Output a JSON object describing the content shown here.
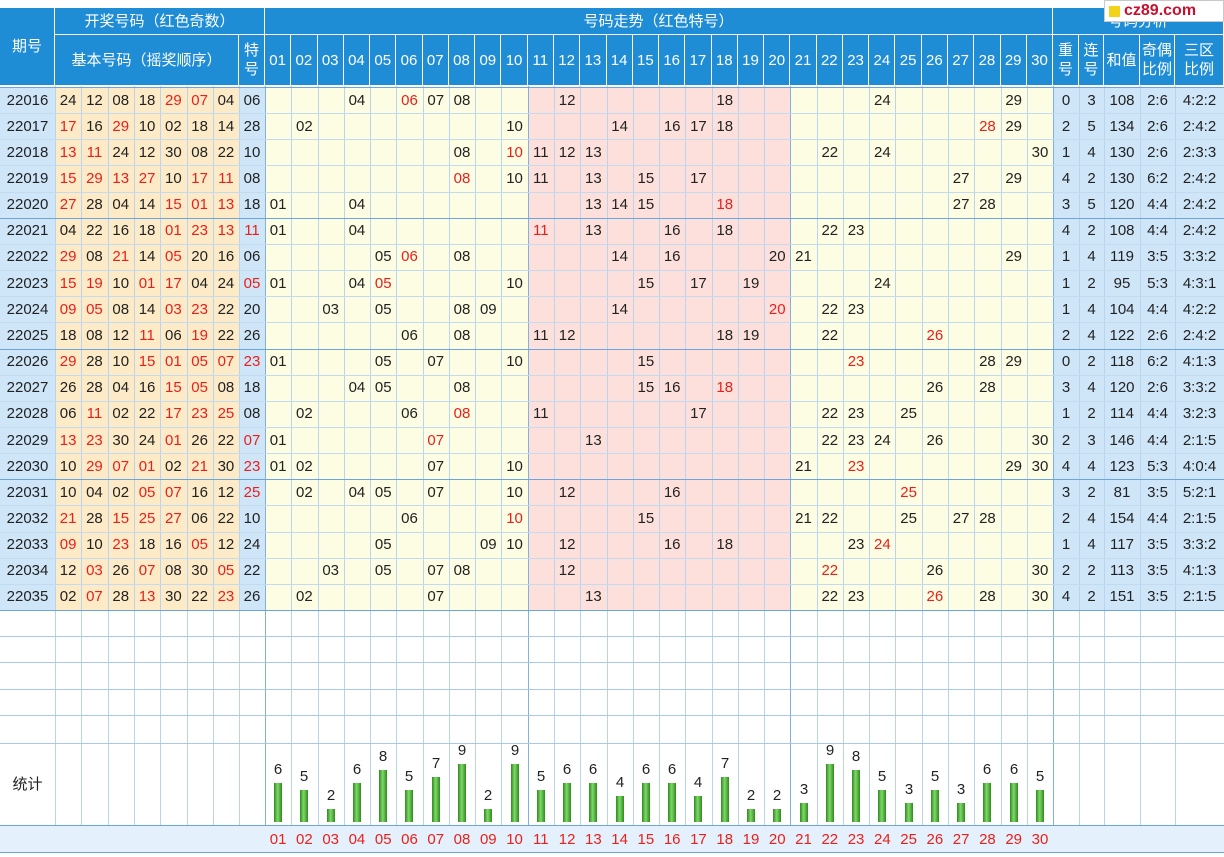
{
  "header": {
    "period_label": "期号",
    "draw_group_label": "开奖号码（红色奇数）",
    "basic_label": "基本号码（摇奖顺序）",
    "special_label": "特号",
    "trend_label": "号码走势（红色特号）",
    "analysis_label": "号码分析",
    "repeat_label": "重号",
    "consec_label": "连号",
    "sum_label": "和值",
    "oddeven_label": "奇偶比例",
    "zone_label": "三区比例",
    "stats_label": "统计"
  },
  "trend_numbers": [
    "01",
    "02",
    "03",
    "04",
    "05",
    "06",
    "07",
    "08",
    "09",
    "10",
    "11",
    "12",
    "13",
    "14",
    "15",
    "16",
    "17",
    "18",
    "19",
    "20",
    "21",
    "22",
    "23",
    "24",
    "25",
    "26",
    "27",
    "28",
    "29",
    "30"
  ],
  "rows": [
    {
      "period": "22016",
      "basic": [
        "24",
        "12",
        "08",
        "18",
        "29",
        "07",
        "04"
      ],
      "special": "06",
      "trend": [
        "04",
        "06",
        "07",
        "08",
        "12",
        "18",
        "24",
        "29"
      ],
      "repeat": "0",
      "consec": "3",
      "sum": "108",
      "oddeven": "2:6",
      "zone": "4:2:2"
    },
    {
      "period": "22017",
      "basic": [
        "17",
        "16",
        "29",
        "10",
        "02",
        "18",
        "14"
      ],
      "special": "28",
      "trend": [
        "02",
        "10",
        "14",
        "16",
        "17",
        "18",
        "28",
        "29"
      ],
      "repeat": "2",
      "consec": "5",
      "sum": "134",
      "oddeven": "2:6",
      "zone": "2:4:2"
    },
    {
      "period": "22018",
      "basic": [
        "13",
        "11",
        "24",
        "12",
        "30",
        "08",
        "22"
      ],
      "special": "10",
      "trend": [
        "08",
        "10",
        "11",
        "12",
        "13",
        "22",
        "24",
        "30"
      ],
      "repeat": "1",
      "consec": "4",
      "sum": "130",
      "oddeven": "2:6",
      "zone": "2:3:3"
    },
    {
      "period": "22019",
      "basic": [
        "15",
        "29",
        "13",
        "27",
        "10",
        "17",
        "11"
      ],
      "special": "08",
      "trend": [
        "08",
        "10",
        "11",
        "13",
        "15",
        "17",
        "27",
        "29"
      ],
      "repeat": "4",
      "consec": "2",
      "sum": "130",
      "oddeven": "6:2",
      "zone": "2:4:2"
    },
    {
      "period": "22020",
      "basic": [
        "27",
        "28",
        "04",
        "14",
        "15",
        "01",
        "13"
      ],
      "special": "18",
      "trend": [
        "01",
        "04",
        "13",
        "14",
        "15",
        "18",
        "27",
        "28"
      ],
      "repeat": "3",
      "consec": "5",
      "sum": "120",
      "oddeven": "4:4",
      "zone": "2:4:2"
    },
    {
      "period": "22021",
      "basic": [
        "04",
        "22",
        "16",
        "18",
        "01",
        "23",
        "13"
      ],
      "special": "11",
      "trend": [
        "01",
        "04",
        "11",
        "13",
        "16",
        "18",
        "22",
        "23"
      ],
      "repeat": "4",
      "consec": "2",
      "sum": "108",
      "oddeven": "4:4",
      "zone": "2:4:2"
    },
    {
      "period": "22022",
      "basic": [
        "29",
        "08",
        "21",
        "14",
        "05",
        "20",
        "16"
      ],
      "special": "06",
      "trend": [
        "05",
        "06",
        "08",
        "14",
        "16",
        "20",
        "21",
        "29"
      ],
      "repeat": "1",
      "consec": "4",
      "sum": "119",
      "oddeven": "3:5",
      "zone": "3:3:2"
    },
    {
      "period": "22023",
      "basic": [
        "15",
        "19",
        "10",
        "01",
        "17",
        "04",
        "24"
      ],
      "special": "05",
      "trend": [
        "01",
        "04",
        "05",
        "10",
        "15",
        "17",
        "19",
        "24"
      ],
      "repeat": "1",
      "consec": "2",
      "sum": "95",
      "oddeven": "5:3",
      "zone": "4:3:1"
    },
    {
      "period": "22024",
      "basic": [
        "09",
        "05",
        "08",
        "14",
        "03",
        "23",
        "22"
      ],
      "special": "20",
      "trend": [
        "03",
        "05",
        "08",
        "09",
        "14",
        "20",
        "22",
        "23"
      ],
      "repeat": "1",
      "consec": "4",
      "sum": "104",
      "oddeven": "4:4",
      "zone": "4:2:2"
    },
    {
      "period": "22025",
      "basic": [
        "18",
        "08",
        "12",
        "11",
        "06",
        "19",
        "22"
      ],
      "special": "26",
      "trend": [
        "06",
        "08",
        "11",
        "12",
        "18",
        "19",
        "22",
        "26"
      ],
      "repeat": "2",
      "consec": "4",
      "sum": "122",
      "oddeven": "2:6",
      "zone": "2:4:2"
    },
    {
      "period": "22026",
      "basic": [
        "29",
        "28",
        "10",
        "15",
        "01",
        "05",
        "07"
      ],
      "special": "23",
      "trend": [
        "01",
        "05",
        "07",
        "10",
        "15",
        "23",
        "28",
        "29"
      ],
      "repeat": "0",
      "consec": "2",
      "sum": "118",
      "oddeven": "6:2",
      "zone": "4:1:3"
    },
    {
      "period": "22027",
      "basic": [
        "26",
        "28",
        "04",
        "16",
        "15",
        "05",
        "08"
      ],
      "special": "18",
      "trend": [
        "04",
        "05",
        "08",
        "15",
        "16",
        "18",
        "26",
        "28"
      ],
      "repeat": "3",
      "consec": "4",
      "sum": "120",
      "oddeven": "2:6",
      "zone": "3:3:2"
    },
    {
      "period": "22028",
      "basic": [
        "06",
        "11",
        "02",
        "22",
        "17",
        "23",
        "25"
      ],
      "special": "08",
      "trend": [
        "02",
        "06",
        "08",
        "11",
        "17",
        "22",
        "23",
        "25"
      ],
      "repeat": "1",
      "consec": "2",
      "sum": "114",
      "oddeven": "4:4",
      "zone": "3:2:3"
    },
    {
      "period": "22029",
      "basic": [
        "13",
        "23",
        "30",
        "24",
        "01",
        "26",
        "22"
      ],
      "special": "07",
      "trend": [
        "01",
        "07",
        "13",
        "22",
        "23",
        "24",
        "26",
        "30"
      ],
      "repeat": "2",
      "consec": "3",
      "sum": "146",
      "oddeven": "4:4",
      "zone": "2:1:5"
    },
    {
      "period": "22030",
      "basic": [
        "10",
        "29",
        "07",
        "01",
        "02",
        "21",
        "30"
      ],
      "special": "23",
      "trend": [
        "01",
        "02",
        "07",
        "10",
        "21",
        "23",
        "29",
        "30"
      ],
      "repeat": "4",
      "consec": "4",
      "sum": "123",
      "oddeven": "5:3",
      "zone": "4:0:4"
    },
    {
      "period": "22031",
      "basic": [
        "10",
        "04",
        "02",
        "05",
        "07",
        "16",
        "12"
      ],
      "special": "25",
      "trend": [
        "02",
        "04",
        "05",
        "07",
        "10",
        "12",
        "16",
        "25"
      ],
      "repeat": "3",
      "consec": "2",
      "sum": "81",
      "oddeven": "3:5",
      "zone": "5:2:1"
    },
    {
      "period": "22032",
      "basic": [
        "21",
        "28",
        "15",
        "25",
        "27",
        "06",
        "22"
      ],
      "special": "10",
      "trend": [
        "06",
        "10",
        "15",
        "21",
        "22",
        "25",
        "27",
        "28"
      ],
      "repeat": "2",
      "consec": "4",
      "sum": "154",
      "oddeven": "4:4",
      "zone": "2:1:5"
    },
    {
      "period": "22033",
      "basic": [
        "09",
        "10",
        "23",
        "18",
        "16",
        "05",
        "12"
      ],
      "special": "24",
      "trend": [
        "05",
        "09",
        "10",
        "12",
        "16",
        "18",
        "23",
        "24"
      ],
      "repeat": "1",
      "consec": "4",
      "sum": "117",
      "oddeven": "3:5",
      "zone": "3:3:2"
    },
    {
      "period": "22034",
      "basic": [
        "12",
        "03",
        "26",
        "07",
        "08",
        "30",
        "05"
      ],
      "special": "22",
      "trend": [
        "03",
        "05",
        "07",
        "08",
        "12",
        "22",
        "26",
        "30"
      ],
      "repeat": "2",
      "consec": "2",
      "sum": "113",
      "oddeven": "3:5",
      "zone": "4:1:3"
    },
    {
      "period": "22035",
      "basic": [
        "02",
        "07",
        "28",
        "13",
        "30",
        "22",
        "23"
      ],
      "special": "26",
      "trend": [
        "02",
        "07",
        "13",
        "22",
        "23",
        "26",
        "28",
        "30"
      ],
      "repeat": "4",
      "consec": "2",
      "sum": "151",
      "oddeven": "3:5",
      "zone": "2:1:5"
    }
  ],
  "stats_counts": [
    6,
    5,
    2,
    6,
    8,
    5,
    7,
    9,
    2,
    9,
    5,
    6,
    6,
    4,
    6,
    6,
    4,
    7,
    2,
    2,
    3,
    9,
    8,
    5,
    3,
    5,
    3,
    6,
    6,
    5
  ],
  "watermark": "cz89.com",
  "colors": {
    "header_blue": "#1f8dd6",
    "odd_red": "#e8201b",
    "draw_bg": "#fdebc8",
    "trend_bg": "#fdfde3",
    "trend_mid_bg": "#fde0dc",
    "analysis_bg": "#cfe6f9",
    "period_bg": "#cfe6f9",
    "bar_green": "#3c9a2a"
  }
}
